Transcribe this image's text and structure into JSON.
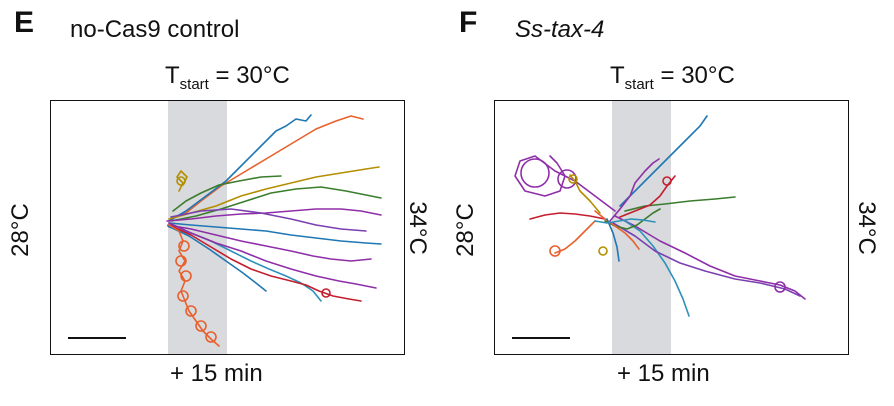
{
  "panels": [
    {
      "letter": "E",
      "title": "no-Cas9 control",
      "start_label_main": "T",
      "start_label_sub": "start",
      "start_label_value": " = 30°C",
      "left_label": "28°C",
      "right_label": "34°C",
      "bottom_label": "+ 15 min"
    },
    {
      "letter": "F",
      "title": "Ss-tax-4",
      "start_label_main": "T",
      "start_label_sub": "start",
      "start_label_value": " = 30°C",
      "left_label": "28°C",
      "right_label": "34°C",
      "bottom_label": "+ 15 min"
    }
  ],
  "colors": {
    "band": "#d8dadd",
    "tracks": [
      "#e8602c",
      "#1f77b4",
      "#8e2fa8",
      "#c41e2e",
      "#3a7d2c",
      "#b38f00",
      "#2e91b8",
      "#7a3fb0"
    ]
  }
}
